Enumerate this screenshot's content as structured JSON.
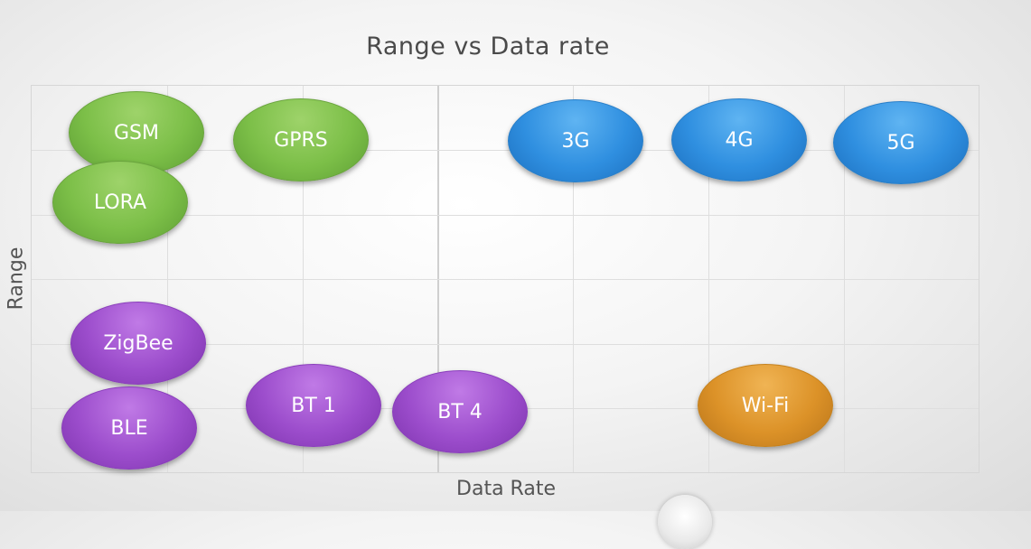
{
  "title": "Range vs Data rate",
  "xlabel": "Data Rate",
  "ylabel": "Range",
  "colors": {
    "green": "#7cbf48",
    "blue": "#2f8fe0",
    "purple": "#9c4dcc",
    "orange": "#dc9228"
  },
  "nodes": [
    {
      "label": "GSM",
      "color": "green"
    },
    {
      "label": "GPRS",
      "color": "green"
    },
    {
      "label": "LORA",
      "color": "green"
    },
    {
      "label": "3G",
      "color": "blue"
    },
    {
      "label": "4G",
      "color": "blue"
    },
    {
      "label": "5G",
      "color": "blue"
    },
    {
      "label": "ZigBee",
      "color": "purple"
    },
    {
      "label": "BLE",
      "color": "purple"
    },
    {
      "label": "BT 1",
      "color": "purple"
    },
    {
      "label": "BT 4",
      "color": "purple"
    },
    {
      "label": "Wi-Fi",
      "color": "orange"
    }
  ]
}
